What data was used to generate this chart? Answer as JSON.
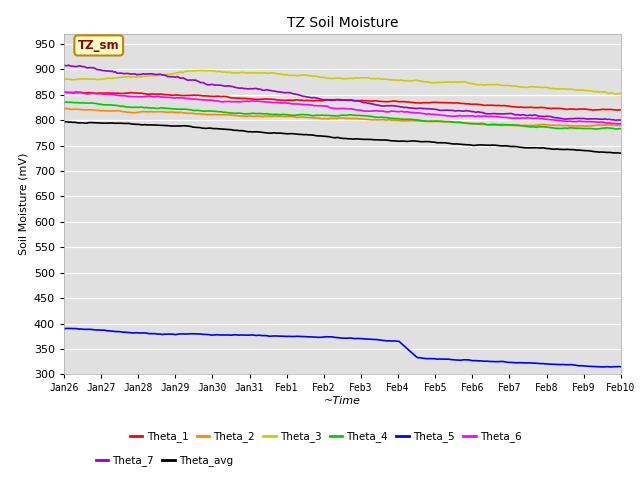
{
  "title": "TZ Soil Moisture",
  "xlabel": "~Time",
  "ylabel": "Soil Moisture (mV)",
  "ylim": [
    300,
    970
  ],
  "yticks": [
    300,
    350,
    400,
    450,
    500,
    550,
    600,
    650,
    700,
    750,
    800,
    850,
    900,
    950
  ],
  "plot_bg_color": "#e0e0e0",
  "fig_bg_color": "#ffffff",
  "annotation_text": "TZ_sm",
  "annotation_bg": "#ffffcc",
  "annotation_border": "#bb8800",
  "annotation_text_color": "#990000",
  "series_order": [
    "Theta_1",
    "Theta_2",
    "Theta_3",
    "Theta_4",
    "Theta_5",
    "Theta_6",
    "Theta_7",
    "Theta_avg"
  ],
  "series": {
    "Theta_1": {
      "color": "#ff0000"
    },
    "Theta_2": {
      "color": "#ff8800"
    },
    "Theta_3": {
      "color": "#cccc00"
    },
    "Theta_4": {
      "color": "#00cc00"
    },
    "Theta_5": {
      "color": "#0000ff"
    },
    "Theta_6": {
      "color": "#ff00ff"
    },
    "Theta_7": {
      "color": "#9900cc"
    },
    "Theta_avg": {
      "color": "#000000"
    }
  },
  "xtick_labels": [
    "Jan 26",
    "Jan 27",
    "Jan 28",
    "Jan 29",
    "Jan 30",
    "Jan 31",
    "Feb 1",
    "Feb 2",
    "Feb 3",
    "Feb 4",
    "Feb 5",
    "Feb 6",
    "Feb 7",
    "Feb 8",
    "Feb 9",
    "Feb 10"
  ],
  "xtick_positions": [
    0,
    1,
    2,
    3,
    4,
    5,
    6,
    7,
    8,
    9,
    10,
    11,
    12,
    13,
    14,
    15
  ],
  "legend_row1": [
    "Theta_1",
    "Theta_2",
    "Theta_3",
    "Theta_4",
    "Theta_5",
    "Theta_6"
  ],
  "legend_row2": [
    "Theta_7",
    "Theta_avg"
  ]
}
